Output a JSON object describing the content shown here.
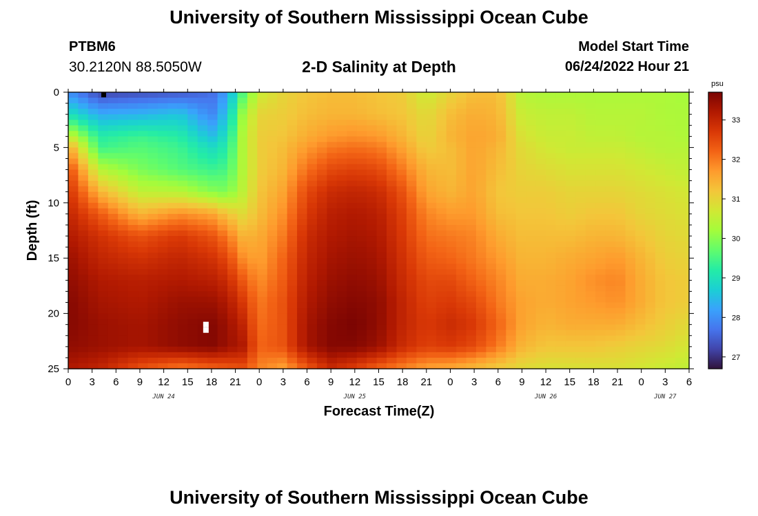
{
  "header": {
    "title": "University of Southern Mississippi Ocean Cube",
    "station": "PTBM6",
    "coords": "30.2120N  88.5050W",
    "subtitle": "2-D Salinity at Depth",
    "start_label": "Model Start Time",
    "start_value": "06/24/2022 Hour 21"
  },
  "footer": {
    "title": "University of Southern Mississippi Ocean Cube"
  },
  "chart_data": {
    "type": "heatmap",
    "title": "2-D Salinity at Depth",
    "xlabel": "Forecast Time(Z)",
    "ylabel": "Depth (ft)",
    "x_range_hours": [
      0,
      78
    ],
    "y_range_ft": [
      0,
      25
    ],
    "x_ticks": [
      "0",
      "3",
      "6",
      "9",
      "12",
      "15",
      "18",
      "21",
      "0",
      "3",
      "6",
      "9",
      "12",
      "15",
      "18",
      "21",
      "0",
      "3",
      "6",
      "9",
      "12",
      "15",
      "18",
      "21",
      "0",
      "3",
      "6"
    ],
    "y_ticks": [
      "0",
      "5",
      "10",
      "15",
      "20",
      "25"
    ],
    "date_labels": [
      {
        "text": "JUN 24",
        "hour": 12
      },
      {
        "text": "JUN 25",
        "hour": 36
      },
      {
        "text": "JUN 26",
        "hour": 60
      },
      {
        "text": "JUN 27",
        "hour": 75
      }
    ],
    "colorbar": {
      "unit": "psu",
      "range": [
        26.7,
        33.7
      ],
      "ticks": [
        "27",
        "28",
        "29",
        "30",
        "31",
        "32",
        "33"
      ],
      "colors": [
        "#30123b",
        "#4145ab",
        "#4675ed",
        "#39a2fc",
        "#1bcfd4",
        "#24eca6",
        "#61fc6c",
        "#a4fc3b",
        "#d1e834",
        "#f3c63a",
        "#fe9b2d",
        "#f36315",
        "#d93806",
        "#b11901",
        "#7a0402"
      ]
    },
    "salinity_field": {
      "hour_nodes": [
        0,
        4,
        9,
        14,
        18,
        20,
        22,
        24,
        27,
        30,
        33,
        36,
        39,
        42,
        45,
        48,
        51,
        54,
        57,
        60,
        63,
        66,
        69,
        72,
        75,
        78
      ],
      "depth_nodes": [
        0,
        2,
        4,
        5,
        7,
        9,
        11,
        13,
        15,
        17,
        19,
        21,
        23,
        25
      ],
      "values": [
        [
          28.0,
          27.2,
          27.3,
          27.4,
          27.6,
          28.2,
          29.6,
          30.6,
          31.0,
          31.2,
          31.3,
          31.3,
          31.2,
          31.1,
          30.6,
          31.0,
          31.3,
          31.3,
          30.4,
          30.3,
          30.3,
          30.3,
          30.3,
          30.3,
          30.3,
          30.2
        ],
        [
          29.0,
          28.3,
          28.4,
          28.6,
          27.9,
          28.6,
          30.2,
          31.0,
          31.1,
          31.3,
          31.4,
          31.4,
          31.3,
          31.2,
          30.9,
          31.3,
          31.5,
          31.4,
          30.6,
          30.5,
          30.5,
          30.4,
          30.4,
          30.4,
          30.3,
          30.3
        ],
        [
          30.6,
          29.2,
          29.4,
          29.2,
          28.5,
          29.0,
          30.4,
          31.1,
          31.2,
          31.5,
          31.7,
          31.8,
          31.7,
          31.4,
          31.0,
          31.4,
          31.6,
          31.5,
          30.8,
          30.6,
          30.6,
          30.5,
          30.5,
          30.4,
          30.4,
          30.3
        ],
        [
          31.6,
          29.4,
          29.6,
          29.4,
          28.9,
          29.2,
          30.4,
          31.1,
          31.3,
          31.7,
          32.0,
          32.1,
          32.0,
          31.6,
          31.1,
          31.3,
          31.6,
          31.4,
          30.9,
          30.7,
          30.6,
          30.6,
          30.6,
          30.5,
          30.4,
          30.4
        ],
        [
          32.5,
          30.4,
          29.9,
          29.6,
          29.4,
          29.5,
          30.4,
          31.1,
          31.4,
          32.1,
          32.5,
          32.6,
          32.5,
          32.0,
          31.4,
          31.3,
          31.6,
          31.3,
          31.0,
          30.9,
          30.8,
          30.8,
          30.8,
          30.7,
          30.6,
          30.5
        ],
        [
          32.8,
          31.4,
          30.5,
          30.4,
          30.0,
          29.9,
          30.5,
          31.2,
          31.6,
          32.5,
          32.9,
          33.0,
          32.9,
          32.4,
          31.6,
          31.4,
          31.6,
          31.2,
          31.1,
          31.1,
          31.0,
          31.0,
          31.0,
          30.9,
          30.8,
          30.7
        ],
        [
          33.0,
          32.3,
          31.4,
          31.8,
          31.6,
          31.2,
          30.9,
          31.3,
          31.8,
          32.7,
          33.1,
          33.2,
          33.1,
          32.6,
          31.9,
          31.7,
          31.7,
          31.3,
          31.2,
          31.2,
          31.1,
          31.2,
          31.2,
          31.0,
          30.9,
          30.8
        ],
        [
          33.2,
          32.8,
          32.4,
          32.7,
          32.4,
          32.0,
          31.4,
          31.5,
          32.0,
          32.9,
          33.2,
          33.3,
          33.2,
          32.7,
          32.1,
          32.0,
          31.9,
          31.5,
          31.3,
          31.3,
          31.3,
          31.4,
          31.4,
          31.2,
          31.0,
          30.9
        ],
        [
          33.4,
          33.0,
          32.8,
          33.0,
          32.8,
          32.5,
          31.8,
          31.6,
          32.2,
          33.0,
          33.3,
          33.4,
          33.3,
          32.8,
          32.3,
          32.2,
          32.0,
          31.7,
          31.4,
          31.4,
          31.5,
          31.6,
          31.7,
          31.4,
          31.1,
          31.0
        ],
        [
          33.5,
          33.2,
          33.1,
          33.2,
          33.1,
          32.9,
          32.3,
          31.8,
          32.3,
          33.1,
          33.4,
          33.5,
          33.4,
          32.9,
          32.5,
          32.5,
          32.2,
          31.9,
          31.5,
          31.5,
          31.6,
          31.8,
          31.9,
          31.5,
          31.2,
          31.1
        ],
        [
          33.6,
          33.3,
          33.2,
          33.4,
          33.4,
          33.2,
          32.7,
          32.0,
          32.4,
          33.2,
          33.5,
          33.6,
          33.5,
          33.0,
          32.6,
          32.7,
          32.5,
          32.0,
          31.6,
          31.5,
          31.6,
          31.7,
          31.8,
          31.5,
          31.2,
          31.1
        ],
        [
          33.6,
          33.4,
          33.3,
          33.5,
          33.6,
          33.4,
          33.0,
          32.1,
          32.4,
          33.3,
          33.6,
          33.7,
          33.5,
          33.0,
          32.7,
          32.9,
          32.7,
          32.2,
          31.6,
          31.4,
          31.5,
          31.5,
          31.5,
          31.3,
          31.1,
          30.9
        ],
        [
          33.5,
          33.4,
          33.3,
          33.5,
          33.6,
          33.4,
          33.2,
          32.2,
          32.4,
          33.3,
          33.6,
          33.6,
          33.4,
          32.9,
          32.6,
          32.7,
          32.5,
          32.0,
          31.4,
          31.2,
          31.2,
          31.2,
          31.1,
          31.0,
          30.9,
          30.7
        ],
        [
          33.2,
          33.0,
          32.4,
          32.0,
          32.2,
          32.3,
          32.4,
          31.9,
          31.6,
          32.3,
          32.9,
          32.6,
          32.2,
          31.9,
          31.6,
          31.5,
          31.3,
          31.1,
          30.9,
          30.8,
          30.8,
          30.8,
          30.8,
          30.7,
          30.6,
          30.5
        ]
      ]
    },
    "masked_cells": [
      {
        "hour": 4.5,
        "depth": 0.4
      },
      {
        "hour": 17.3,
        "depth": 21.0
      },
      {
        "hour": 17.3,
        "depth": 21.5
      }
    ]
  }
}
